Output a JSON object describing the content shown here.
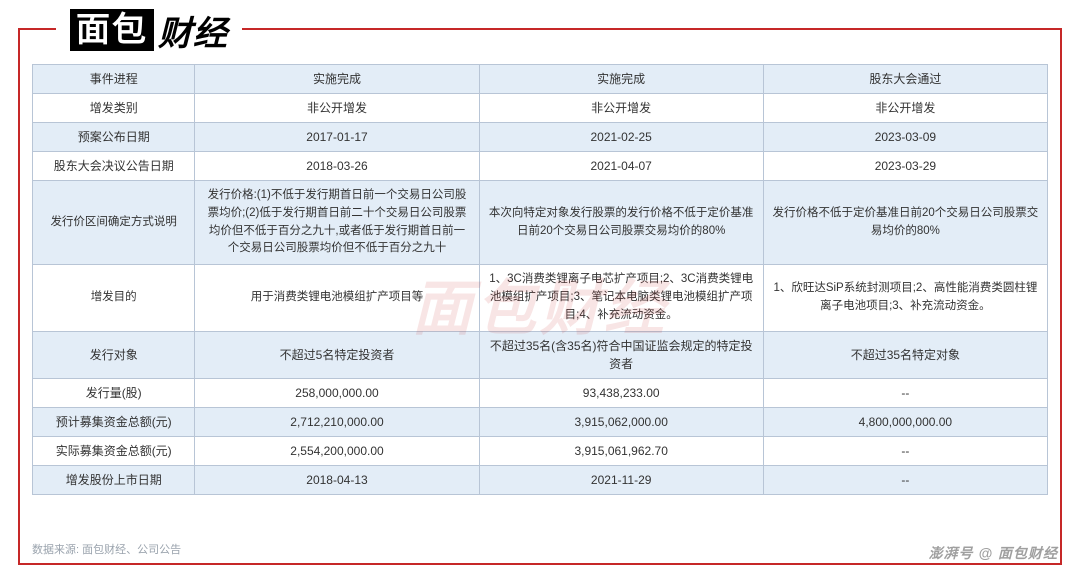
{
  "logo": {
    "left": "面包",
    "right": "财经",
    "reg": "®"
  },
  "watermark_center": "面包财经",
  "watermark_bottom": "澎湃号 @ 面包财经",
  "source_label": "数据来源: 面包财经、公司公告",
  "table": {
    "cols": [
      "c0",
      "c1",
      "c2",
      "c3"
    ],
    "rows": [
      {
        "cls": "h",
        "c": [
          "事件进程",
          "实施完成",
          "实施完成",
          "股东大会通过"
        ]
      },
      {
        "cls": "n",
        "c": [
          "增发类别",
          "非公开增发",
          "非公开增发",
          "非公开增发"
        ]
      },
      {
        "cls": "h",
        "c": [
          "预案公布日期",
          "2017-01-17",
          "2021-02-25",
          "2023-03-09"
        ]
      },
      {
        "cls": "n",
        "c": [
          "股东大会决议公告日期",
          "2018-03-26",
          "2021-04-07",
          "2023-03-29"
        ]
      },
      {
        "cls": "h",
        "long": true,
        "c": [
          "发行价区间确定方式说明",
          "发行价格:(1)不低于发行期首日前一个交易日公司股票均价;(2)低于发行期首日前二十个交易日公司股票均价但不低于百分之九十,或者低于发行期首日前一个交易日公司股票均价但不低于百分之九十",
          "本次向特定对象发行股票的发行价格不低于定价基准日前20个交易日公司股票交易均价的80%",
          "发行价格不低于定价基准日前20个交易日公司股票交易均价的80%"
        ]
      },
      {
        "cls": "n",
        "long": true,
        "c": [
          "增发目的",
          "用于消费类锂电池模组扩产项目等",
          "1、3C消费类锂离子电芯扩产项目;2、3C消费类锂电池模组扩产项目;3、笔记本电脑类锂电池模组扩产项目;4、补充流动资金。",
          "1、欣旺达SiP系统封测项目;2、高性能消费类圆柱锂离子电池项目;3、补充流动资金。"
        ]
      },
      {
        "cls": "h",
        "c": [
          "发行对象",
          "不超过5名特定投资者",
          "不超过35名(含35名)符合中国证监会规定的特定投资者",
          "不超过35名特定对象"
        ]
      },
      {
        "cls": "n",
        "c": [
          "发行量(股)",
          "258,000,000.00",
          "93,438,233.00",
          "--"
        ]
      },
      {
        "cls": "h",
        "c": [
          "预计募集资金总额(元)",
          "2,712,210,000.00",
          "3,915,062,000.00",
          "4,800,000,000.00"
        ]
      },
      {
        "cls": "n",
        "c": [
          "实际募集资金总额(元)",
          "2,554,200,000.00",
          "3,915,061,962.70",
          "--"
        ]
      },
      {
        "cls": "h",
        "c": [
          "增发股份上市日期",
          "2018-04-13",
          "2021-11-29",
          "--"
        ]
      }
    ]
  },
  "style": {
    "border_color": "#c62828",
    "header_bg": "#e3edf7",
    "cell_border": "#b8c5d6",
    "text_color": "#333333",
    "source_color": "#9aa3ad",
    "font_sizes": {
      "cell": 12,
      "cell_long": 11.5,
      "source": 11,
      "logo": 34
    }
  }
}
